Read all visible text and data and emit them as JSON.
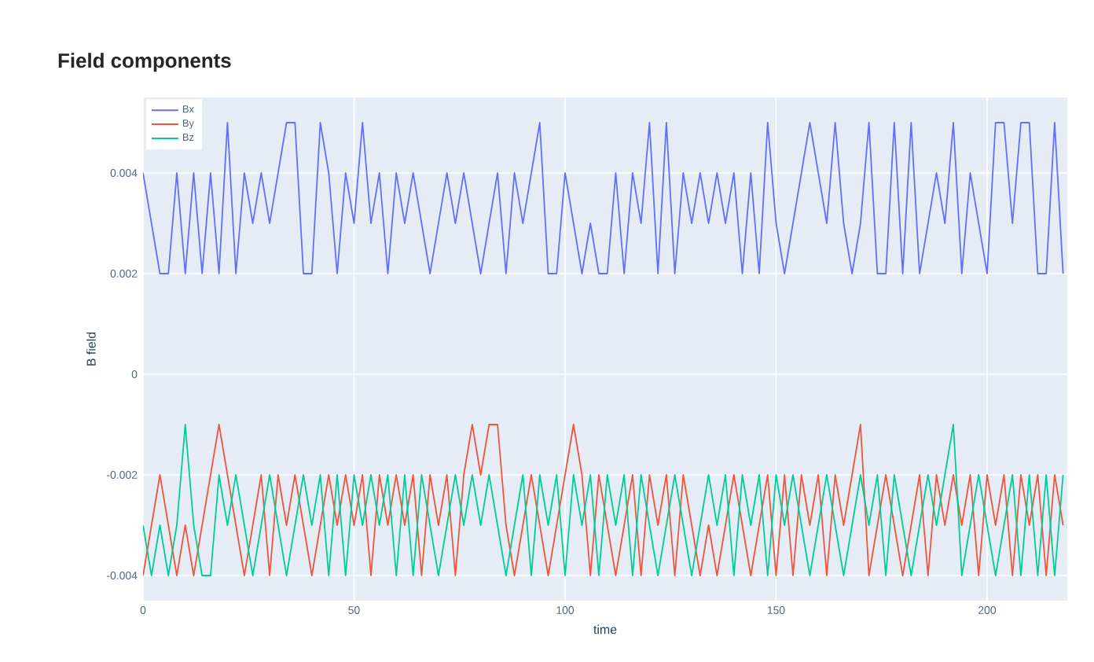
{
  "chart_data": {
    "type": "line",
    "title": "Field components",
    "xlabel": "time",
    "ylabel": "B field",
    "x": [
      0,
      2,
      4,
      6,
      8,
      10,
      12,
      14,
      16,
      18,
      20,
      22,
      24,
      26,
      28,
      30,
      32,
      34,
      36,
      38,
      40,
      42,
      44,
      46,
      48,
      50,
      52,
      54,
      56,
      58,
      60,
      62,
      64,
      66,
      68,
      70,
      72,
      74,
      76,
      78,
      80,
      82,
      84,
      86,
      88,
      90,
      92,
      94,
      96,
      98,
      100,
      102,
      104,
      106,
      108,
      110,
      112,
      114,
      116,
      118,
      120,
      122,
      124,
      126,
      128,
      130,
      132,
      134,
      136,
      138,
      140,
      142,
      144,
      146,
      148,
      150,
      152,
      154,
      156,
      158,
      160,
      162,
      164,
      166,
      168,
      170,
      172,
      174,
      176,
      178,
      180,
      182,
      184,
      186,
      188,
      190,
      192,
      194,
      196,
      198,
      200,
      202,
      204,
      206,
      208,
      210,
      212,
      214,
      216,
      218
    ],
    "series": [
      {
        "name": "Bx",
        "color": "#636efa",
        "values": [
          0.004,
          0.003,
          0.002,
          0.002,
          0.004,
          0.002,
          0.004,
          0.002,
          0.004,
          0.002,
          0.005,
          0.002,
          0.004,
          0.003,
          0.004,
          0.003,
          0.004,
          0.005,
          0.005,
          0.002,
          0.002,
          0.005,
          0.004,
          0.002,
          0.004,
          0.003,
          0.005,
          0.003,
          0.004,
          0.002,
          0.004,
          0.003,
          0.004,
          0.003,
          0.002,
          0.003,
          0.004,
          0.003,
          0.004,
          0.003,
          0.002,
          0.003,
          0.004,
          0.002,
          0.004,
          0.003,
          0.004,
          0.005,
          0.002,
          0.002,
          0.004,
          0.003,
          0.002,
          0.003,
          0.002,
          0.002,
          0.004,
          0.002,
          0.004,
          0.003,
          0.005,
          0.002,
          0.005,
          0.002,
          0.004,
          0.003,
          0.004,
          0.003,
          0.004,
          0.003,
          0.004,
          0.002,
          0.004,
          0.002,
          0.005,
          0.003,
          0.002,
          0.003,
          0.004,
          0.005,
          0.004,
          0.003,
          0.005,
          0.003,
          0.002,
          0.003,
          0.005,
          0.002,
          0.002,
          0.005,
          0.002,
          0.005,
          0.002,
          0.003,
          0.004,
          0.003,
          0.005,
          0.002,
          0.004,
          0.003,
          0.002,
          0.005,
          0.005,
          0.003,
          0.005,
          0.005,
          0.002,
          0.002,
          0.005,
          0.002
        ]
      },
      {
        "name": "By",
        "color": "#ef553b",
        "values": [
          -0.004,
          -0.003,
          -0.002,
          -0.003,
          -0.004,
          -0.003,
          -0.004,
          -0.003,
          -0.002,
          -0.001,
          -0.002,
          -0.003,
          -0.004,
          -0.003,
          -0.002,
          -0.004,
          -0.002,
          -0.003,
          -0.002,
          -0.003,
          -0.004,
          -0.003,
          -0.002,
          -0.003,
          -0.002,
          -0.003,
          -0.002,
          -0.004,
          -0.002,
          -0.003,
          -0.002,
          -0.003,
          -0.002,
          -0.004,
          -0.002,
          -0.003,
          -0.002,
          -0.004,
          -0.002,
          -0.001,
          -0.002,
          -0.001,
          -0.001,
          -0.003,
          -0.004,
          -0.003,
          -0.002,
          -0.003,
          -0.004,
          -0.003,
          -0.002,
          -0.001,
          -0.002,
          -0.004,
          -0.002,
          -0.003,
          -0.004,
          -0.003,
          -0.002,
          -0.004,
          -0.002,
          -0.003,
          -0.002,
          -0.004,
          -0.002,
          -0.003,
          -0.004,
          -0.003,
          -0.004,
          -0.003,
          -0.002,
          -0.003,
          -0.004,
          -0.003,
          -0.002,
          -0.004,
          -0.002,
          -0.004,
          -0.002,
          -0.003,
          -0.002,
          -0.004,
          -0.002,
          -0.003,
          -0.002,
          -0.001,
          -0.004,
          -0.003,
          -0.002,
          -0.003,
          -0.004,
          -0.003,
          -0.002,
          -0.004,
          -0.002,
          -0.003,
          -0.002,
          -0.003,
          -0.002,
          -0.004,
          -0.002,
          -0.003,
          -0.002,
          -0.004,
          -0.002,
          -0.003,
          -0.002,
          -0.004,
          -0.002,
          -0.003
        ]
      },
      {
        "name": "Bz",
        "color": "#00cc96",
        "values": [
          -0.003,
          -0.004,
          -0.003,
          -0.004,
          -0.003,
          -0.001,
          -0.003,
          -0.004,
          -0.004,
          -0.002,
          -0.003,
          -0.002,
          -0.003,
          -0.004,
          -0.003,
          -0.002,
          -0.003,
          -0.004,
          -0.003,
          -0.002,
          -0.003,
          -0.002,
          -0.004,
          -0.002,
          -0.004,
          -0.002,
          -0.003,
          -0.002,
          -0.003,
          -0.002,
          -0.004,
          -0.002,
          -0.004,
          -0.002,
          -0.003,
          -0.004,
          -0.003,
          -0.002,
          -0.003,
          -0.002,
          -0.003,
          -0.002,
          -0.003,
          -0.004,
          -0.003,
          -0.002,
          -0.004,
          -0.002,
          -0.003,
          -0.002,
          -0.004,
          -0.002,
          -0.003,
          -0.002,
          -0.004,
          -0.002,
          -0.003,
          -0.002,
          -0.004,
          -0.002,
          -0.003,
          -0.004,
          -0.003,
          -0.002,
          -0.003,
          -0.004,
          -0.003,
          -0.002,
          -0.003,
          -0.002,
          -0.004,
          -0.002,
          -0.003,
          -0.002,
          -0.004,
          -0.002,
          -0.003,
          -0.002,
          -0.003,
          -0.004,
          -0.003,
          -0.002,
          -0.003,
          -0.004,
          -0.003,
          -0.002,
          -0.003,
          -0.002,
          -0.004,
          -0.002,
          -0.003,
          -0.004,
          -0.003,
          -0.002,
          -0.003,
          -0.002,
          -0.001,
          -0.004,
          -0.003,
          -0.002,
          -0.003,
          -0.004,
          -0.003,
          -0.002,
          -0.004,
          -0.002,
          -0.004,
          -0.002,
          -0.004,
          -0.002
        ]
      }
    ],
    "xlim": [
      0,
      219
    ],
    "ylim": [
      -0.0045,
      0.0055
    ],
    "xticks": [
      0,
      50,
      100,
      150,
      200
    ],
    "yticks": [
      -0.004,
      -0.002,
      0,
      0.002,
      0.004
    ],
    "grid": true,
    "legend": "top left",
    "marker": "none",
    "line_style": "solid"
  }
}
